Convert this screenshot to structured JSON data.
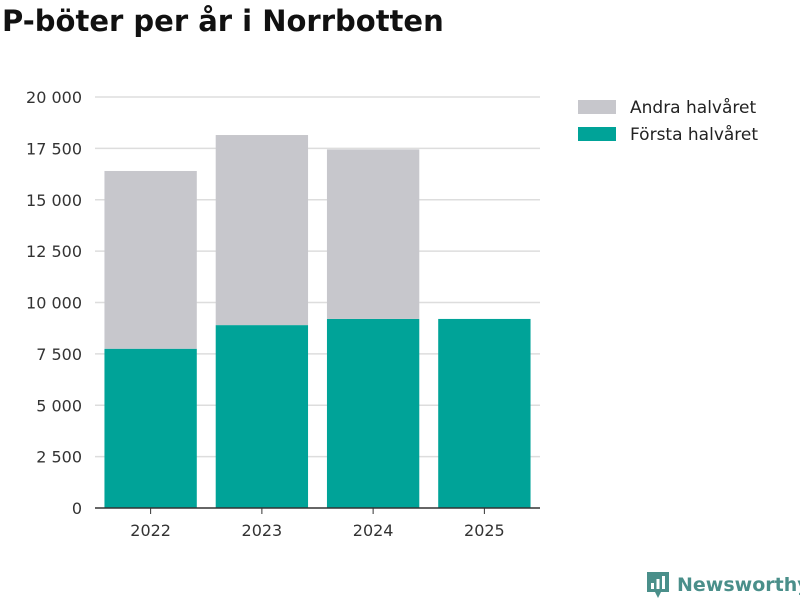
{
  "chart_data": {
    "type": "bar",
    "stacked": true,
    "title": "P-böter per år i Norrbotten",
    "xlabel": "",
    "ylabel": "",
    "categories": [
      "2022",
      "2023",
      "2024",
      "2025"
    ],
    "series": [
      {
        "name": "Första halvåret",
        "color": "#00a398",
        "values": [
          7750,
          8900,
          9200,
          9200
        ]
      },
      {
        "name": "Andra halvåret",
        "color": "#c7c7cc",
        "values": [
          8650,
          9250,
          8250,
          null
        ]
      }
    ],
    "ylim": [
      0,
      20000
    ],
    "yticks": [
      0,
      2500,
      5000,
      7500,
      10000,
      12500,
      15000,
      17500,
      20000
    ],
    "ytick_labels": [
      "0",
      "2 500",
      "5 000",
      "7 500",
      "10 000",
      "12 500",
      "15 000",
      "17 500",
      "20 000"
    ],
    "grid": true,
    "legend_position": "top-right",
    "legend_order": [
      "Andra halvåret",
      "Första halvåret"
    ]
  },
  "brand": {
    "name": "Newsworthy",
    "icon": "newsworthy-logo-icon",
    "color": "#4a8f8a"
  }
}
